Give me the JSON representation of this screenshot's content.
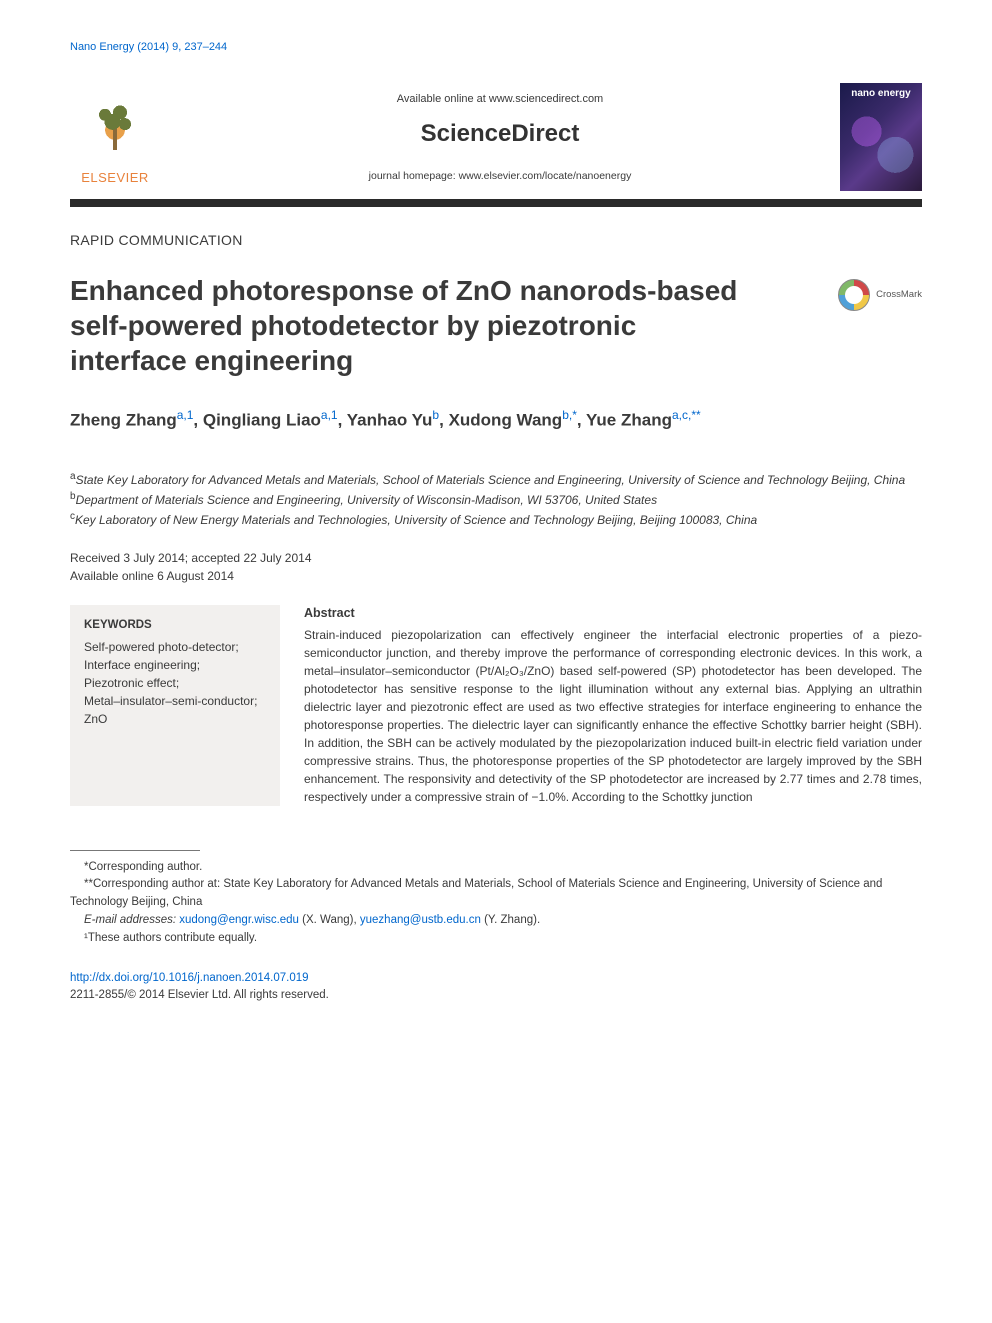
{
  "citation": "Nano Energy (2014) 9, 237–244",
  "header": {
    "elsevier": "ELSEVIER",
    "available": "Available online at www.sciencedirect.com",
    "sciencedirect": "ScienceDirect",
    "homepage": "journal homepage: www.elsevier.com/locate/nanoenergy",
    "cover_title": "nano energy"
  },
  "article_type": "RAPID COMMUNICATION",
  "title": "Enhanced photoresponse of ZnO nanorods-based self-powered photodetector by piezotronic interface engineering",
  "crossmark": "CrossMark",
  "authors_html": "Zheng Zhang<sup>a,1</sup><span class='sep'>, </span>Qingliang Liao<sup>a,1</sup><span class='sep'>, </span>Yanhao Yu<sup>b</sup><span class='sep'>, </span>Xudong Wang<sup>b,*</sup><span class='sep'>, </span>Yue Zhang<sup>a,c,**</sup>",
  "affiliations": {
    "a": "State Key Laboratory for Advanced Metals and Materials, School of Materials Science and Engineering, University of Science and Technology Beijing, China",
    "b": "Department of Materials Science and Engineering, University of Wisconsin-Madison, WI 53706, United States",
    "c": "Key Laboratory of New Energy Materials and Technologies, University of Science and Technology Beijing, Beijing 100083, China"
  },
  "dates": {
    "received": "Received 3 July 2014; accepted 22 July 2014",
    "online": "Available online 6 August 2014"
  },
  "keywords": {
    "heading": "KEYWORDS",
    "items": [
      "Self-powered photo-detector;",
      "Interface engineering;",
      "Piezotronic effect;",
      "Metal–insulator–semi-conductor;",
      "ZnO"
    ]
  },
  "abstract": {
    "heading": "Abstract",
    "text": "Strain-induced piezopolarization can effectively engineer the interfacial electronic properties of a piezo-semiconductor junction, and thereby improve the performance of corresponding electronic devices. In this work, a metal–insulator–semiconductor (Pt/Al₂O₃/ZnO) based self-powered (SP) photodetector has been developed. The photodetector has sensitive response to the light illumination without any external bias. Applying an ultrathin dielectric layer and piezotronic effect are used as two effective strategies for interface engineering to enhance the photoresponse properties. The dielectric layer can significantly enhance the effective Schottky barrier height (SBH). In addition, the SBH can be actively modulated by the piezopolarization induced built-in electric field variation under compressive strains. Thus, the photoresponse properties of the SP photodetector are largely improved by the SBH enhancement. The responsivity and detectivity of the SP photodetector are increased by 2.77 times and 2.78 times, respectively under a compressive strain of −1.0%. According to the Schottky junction"
  },
  "footnotes": {
    "corr1": "*Corresponding author.",
    "corr2": "**Corresponding author at: State Key Laboratory for Advanced Metals and Materials, School of Materials Science and Engineering, University of Science and Technology Beijing, China",
    "email_label": "E-mail addresses: ",
    "email1": "xudong@engr.wisc.edu",
    "email1_name": " (X. Wang), ",
    "email2": "yuezhang@ustb.edu.cn",
    "email2_name": " (Y. Zhang).",
    "equal": "¹These authors contribute equally."
  },
  "doi": {
    "url": "http://dx.doi.org/10.1016/j.nanoen.2014.07.019",
    "copyright": "2211-2855/© 2014 Elsevier Ltd. All rights reserved."
  },
  "colors": {
    "link": "#0066cc",
    "text": "#3a3a3a",
    "elsevier_orange": "#e8823c",
    "divider": "#2a2a2a",
    "keywords_bg": "#f2f0ee"
  },
  "typography": {
    "body_fontsize": 13,
    "title_fontsize": 28,
    "authors_fontsize": 17,
    "sciencedirect_fontsize": 24,
    "abstract_fontsize": 12,
    "footnote_fontsize": 11.5
  }
}
